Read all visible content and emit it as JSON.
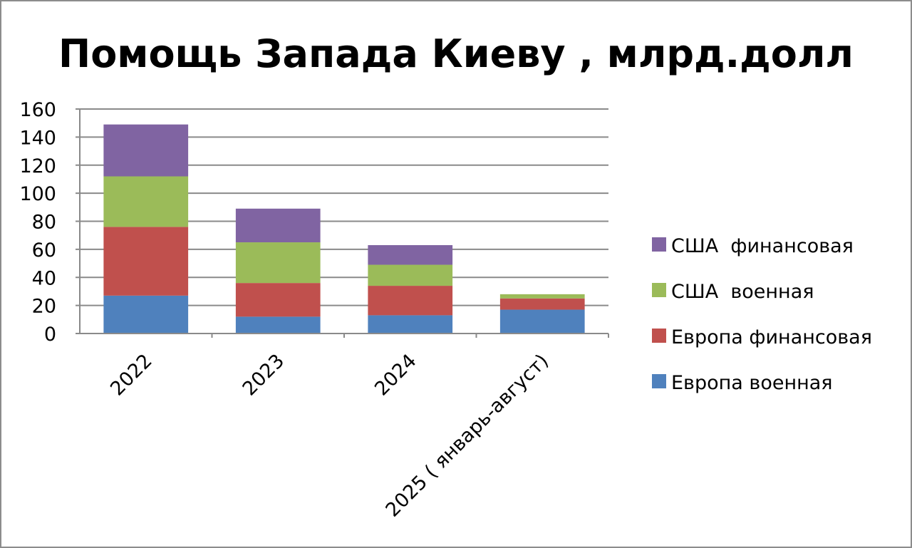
{
  "chart_data": {
    "type": "bar",
    "stacked": true,
    "title": "Помощь Запада Киеву , млрд.долл",
    "categories": [
      "2022",
      "2023",
      "2024",
      "2025 ( январь-август)"
    ],
    "series": [
      {
        "name": "Европа военная",
        "color": "#4F81BD",
        "values": [
          27,
          12,
          13,
          17
        ]
      },
      {
        "name": "Европа финансовая",
        "color": "#C0504D",
        "values": [
          49,
          24,
          21,
          8
        ]
      },
      {
        "name": "США  военная",
        "color": "#9BBB59",
        "values": [
          36,
          29,
          15,
          3
        ]
      },
      {
        "name": "США  финансовая",
        "color": "#8064A2",
        "values": [
          37,
          24,
          14,
          0
        ]
      }
    ],
    "ylim": [
      0,
      160
    ],
    "yticks": [
      0,
      20,
      40,
      60,
      80,
      100,
      120,
      140,
      160
    ],
    "grid": true,
    "legend_position": "right",
    "legend_order": [
      "США  финансовая",
      "США  военная",
      "Европа финансовая",
      "Европа военная"
    ]
  }
}
